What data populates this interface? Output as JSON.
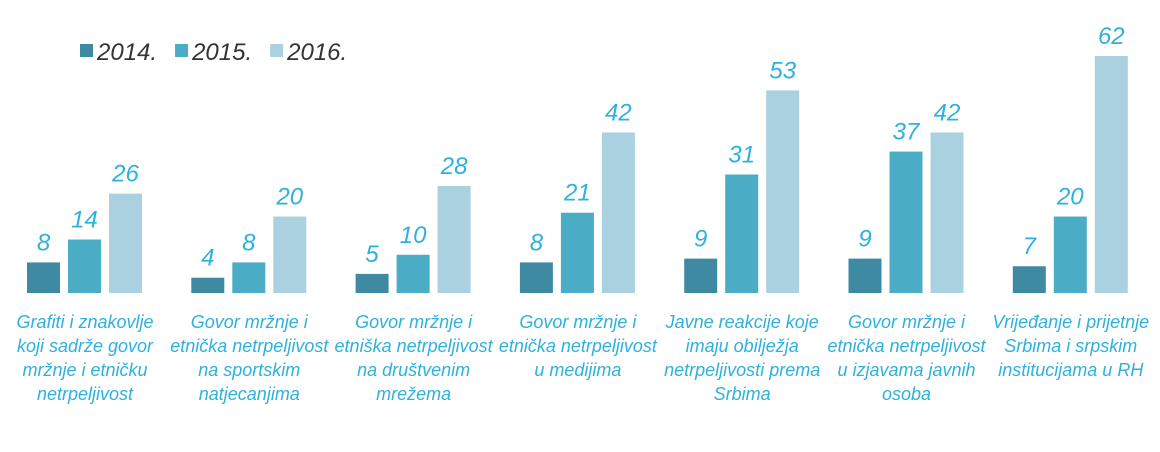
{
  "chart_data": {
    "type": "bar",
    "categories": [
      "Grafiti i znakovlje koji sadrže govor mržnje i etničku netrpeljivost",
      "Govor mržnje i etnička netrpeljivost na sportskim natjecanjima",
      "Govor mržnje i etniška netrpeljivost na društvenim mrežema",
      "Govor mržnje i etnička netrpeljivost u medijima",
      "Javne reakcije koje imaju obilježja netrpeljivosti prema Srbima",
      "Govor mržnje i etnička netrpeljivost u izjavama javnih osoba",
      "Vrijeđanje i prijetnje Srbima i srpskim institucijama u RH"
    ],
    "series": [
      {
        "name": "2014.",
        "color": "#3f8aa3",
        "values": [
          8,
          4,
          5,
          8,
          9,
          9,
          7
        ]
      },
      {
        "name": "2015.",
        "color": "#4bacc6",
        "values": [
          14,
          8,
          10,
          21,
          31,
          37,
          20
        ]
      },
      {
        "name": "2016.",
        "color": "#a9d1df",
        "values": [
          26,
          20,
          28,
          42,
          53,
          42,
          62
        ]
      }
    ],
    "legend": "top-left",
    "label_color": "#2eb1dc"
  }
}
